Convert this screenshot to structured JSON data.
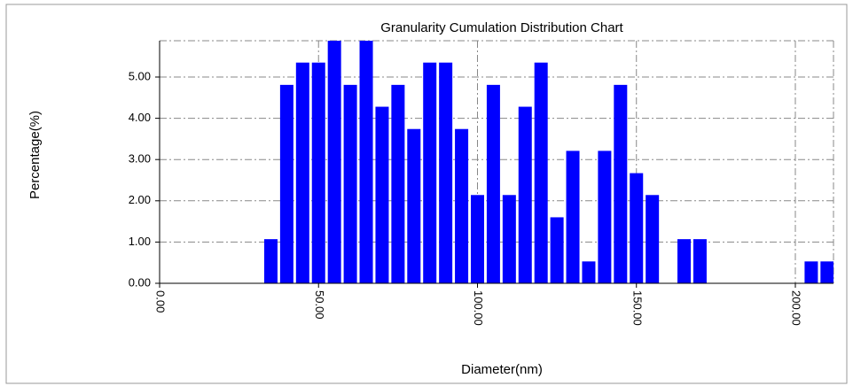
{
  "chart_data": {
    "type": "bar",
    "title": "Granularity Cumulation Distribution  Chart",
    "xlabel": "Diameter(nm)",
    "ylabel": "Percentage(%)",
    "x": [
      35,
      40,
      45,
      50,
      55,
      60,
      65,
      70,
      75,
      80,
      85,
      90,
      95,
      100,
      105,
      110,
      115,
      120,
      125,
      130,
      135,
      140,
      145,
      150,
      155,
      165,
      170,
      205,
      210
    ],
    "values": [
      1.07,
      4.81,
      5.35,
      5.35,
      5.88,
      4.81,
      5.88,
      4.28,
      4.81,
      3.74,
      5.35,
      5.35,
      3.74,
      2.14,
      4.81,
      2.14,
      4.28,
      5.35,
      1.6,
      3.21,
      0.53,
      3.21,
      4.81,
      2.67,
      2.14,
      1.07,
      1.07,
      0.53,
      0.53
    ],
    "color": "#0000ff",
    "xlim": [
      0,
      212
    ],
    "ylim": [
      0,
      5.88
    ],
    "xticks": [
      {
        "value": 0,
        "label": "0.00"
      },
      {
        "value": 50,
        "label": "50.00"
      },
      {
        "value": 100,
        "label": "100.00"
      },
      {
        "value": 150,
        "label": "150.00"
      },
      {
        "value": 200,
        "label": "200.00"
      }
    ],
    "yticks": [
      {
        "value": 0,
        "label": "0.00"
      },
      {
        "value": 1,
        "label": "1.00"
      },
      {
        "value": 2,
        "label": "2.00"
      },
      {
        "value": 3,
        "label": "3.00"
      },
      {
        "value": 4,
        "label": "4.00"
      },
      {
        "value": 5,
        "label": "5.00"
      }
    ],
    "grid": true
  }
}
